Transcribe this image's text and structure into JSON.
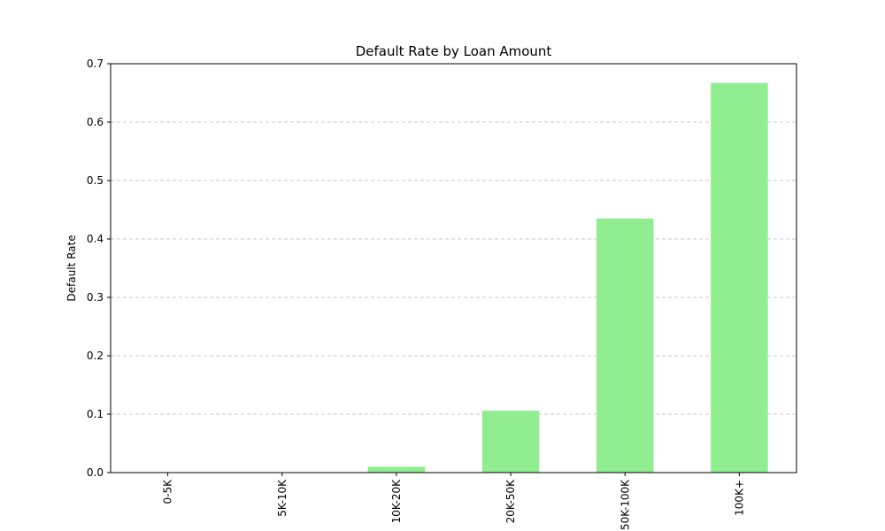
{
  "chart_data": {
    "type": "bar",
    "title": "Default Rate by Loan Amount",
    "xlabel": "",
    "ylabel": "Default Rate",
    "categories": [
      "0-5K",
      "5K-10K",
      "10K-20K",
      "20K-50K",
      "50K-100K",
      "100K+"
    ],
    "values": [
      0.0,
      0.0,
      0.01,
      0.106,
      0.435,
      0.667
    ],
    "ylim": [
      0,
      0.7
    ],
    "yticks": [
      "0.0",
      "0.1",
      "0.2",
      "0.3",
      "0.4",
      "0.5",
      "0.6",
      "0.7"
    ],
    "grid": true,
    "legend": "none"
  },
  "colors": {
    "bar": "#90ee90",
    "grid": "#c8c8c8",
    "axis": "#000000",
    "text": "#000000"
  }
}
